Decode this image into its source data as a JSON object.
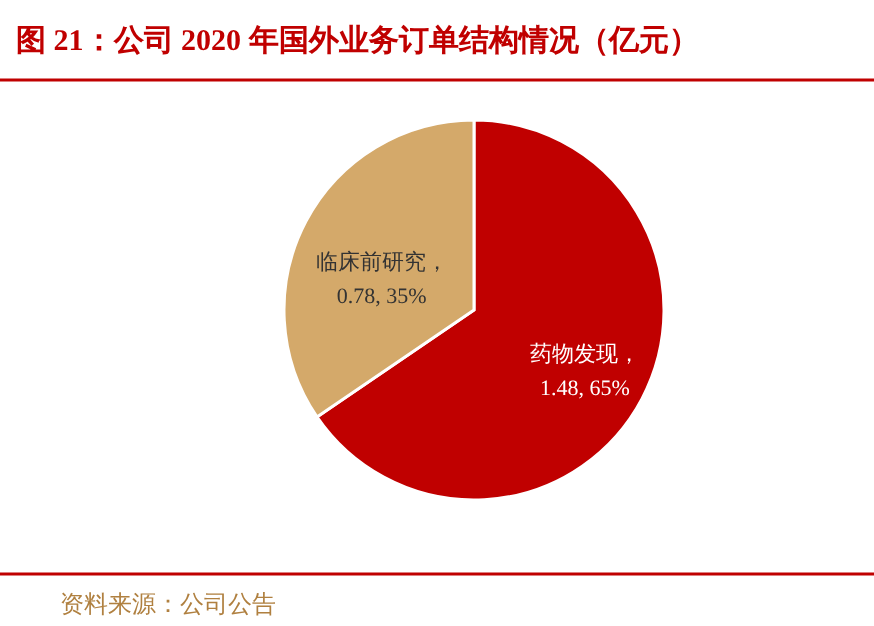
{
  "chart_data": {
    "type": "pie",
    "title": "图 21：公司 2020 年国外业务订单结构情况（亿元）",
    "categories": [
      "药物发现",
      "临床前研究"
    ],
    "values": [
      1.48,
      0.78
    ],
    "colors": [
      "#c00000",
      "#d4a96a"
    ],
    "value_labels": [
      "，\n1.48, 65%",
      "，\n0.78, 35%"
    ],
    "annotations": [
      "资料来源：公司公告"
    ]
  }
}
